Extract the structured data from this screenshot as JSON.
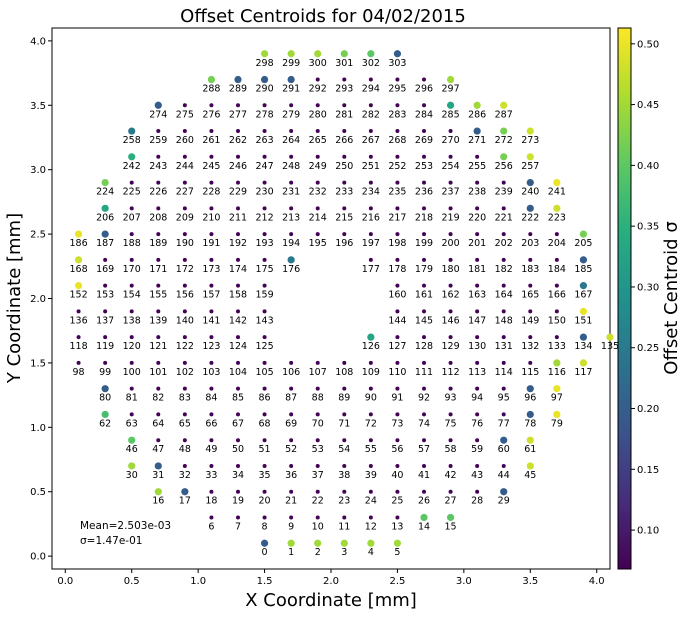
{
  "chart_data": {
    "type": "scatter",
    "title": "Offset Centroids for 04/02/2015",
    "xlabel": "X Coordinate [mm]",
    "ylabel": "Y Coordinate [mm]",
    "colorbar_label": "Offset Centroid σ",
    "xlim": [
      -0.1,
      4.1
    ],
    "ylim": [
      -0.1,
      4.1
    ],
    "xticks": [
      0.0,
      0.5,
      1.0,
      1.5,
      2.0,
      2.5,
      3.0,
      3.5,
      4.0
    ],
    "yticks": [
      0.0,
      0.5,
      1.0,
      1.5,
      2.0,
      2.5,
      3.0,
      3.5,
      4.0
    ],
    "colorbar_range": [
      0.068,
      0.513
    ],
    "colorbar_ticks": [
      0.1,
      0.15,
      0.2,
      0.25,
      0.3,
      0.35,
      0.4,
      0.45,
      0.5
    ],
    "colormap": "viridis",
    "annotations": {
      "mean": "Mean=2.503e-03",
      "sigma": "σ=1.47e-01"
    },
    "rows": [
      {
        "y": 0.1,
        "x_start": 1.5,
        "start_index": 0,
        "count": 6,
        "sigma": [
          0.2,
          0.45,
          0.45,
          0.45,
          0.45,
          0.45
        ]
      },
      {
        "y": 0.3,
        "x_start": 1.1,
        "start_index": 6,
        "count": 10,
        "overrides": {
          "14": 0.4,
          "15": 0.4
        }
      },
      {
        "y": 0.5,
        "x_start": 0.7,
        "start_index": 16,
        "count": 14,
        "overrides": {
          "16": 0.45,
          "17": 0.2,
          "29": 0.2
        }
      },
      {
        "y": 0.7,
        "x_start": 0.5,
        "start_index": 30,
        "count": 16,
        "overrides": {
          "30": 0.45,
          "31": 0.2,
          "45": 0.48
        }
      },
      {
        "y": 0.9,
        "x_start": 0.5,
        "start_index": 46,
        "count": 16,
        "overrides": {
          "46": 0.4,
          "60": 0.2,
          "61": 0.48
        }
      },
      {
        "y": 1.1,
        "x_start": 0.3,
        "start_index": 62,
        "count": 18,
        "overrides": {
          "62": 0.38,
          "78": 0.2,
          "79": 0.5
        }
      },
      {
        "y": 1.3,
        "x_start": 0.3,
        "start_index": 80,
        "count": 18,
        "overrides": {
          "80": 0.2,
          "96": 0.2,
          "97": 0.5
        }
      },
      {
        "y": 1.5,
        "x_start": 0.1,
        "start_index": 98,
        "count": 20,
        "overrides": {
          "116": 0.45,
          "117": 0.48
        }
      },
      {
        "y": 1.7,
        "x_start": 0.1,
        "start_index": 118,
        "count": 18,
        "gap_after_x": 1.5,
        "gap_resume_x": 2.3,
        "overrides": {
          "126": 0.33,
          "134": 0.2,
          "135": 0.48
        }
      },
      {
        "y": 1.9,
        "x_start": 0.1,
        "start_index": 136,
        "count": 16,
        "gap_after_x": 1.5,
        "gap_resume_x": 2.5,
        "overrides": {
          "151": 0.5
        }
      },
      {
        "y": 2.1,
        "x_start": 0.1,
        "start_index": 152,
        "count": 16,
        "gap_after_x": 1.5,
        "gap_resume_x": 2.5,
        "overrides": {
          "152": 0.5,
          "167": 0.25
        }
      },
      {
        "y": 2.3,
        "x_start": 0.1,
        "start_index": 168,
        "count": 18,
        "gap_after_x": 1.7,
        "gap_resume_x": 2.3,
        "overrides": {
          "168": 0.48,
          "176": 0.25,
          "185": 0.2
        }
      },
      {
        "y": 2.5,
        "x_start": 0.1,
        "start_index": 186,
        "count": 20,
        "overrides": {
          "186": 0.5,
          "187": 0.2,
          "205": 0.42
        }
      },
      {
        "y": 2.7,
        "x_start": 0.3,
        "start_index": 206,
        "count": 18,
        "overrides": {
          "206": 0.33,
          "222": 0.2,
          "223": 0.48
        }
      },
      {
        "y": 2.9,
        "x_start": 0.3,
        "start_index": 224,
        "count": 18,
        "overrides": {
          "224": 0.42,
          "240": 0.2,
          "241": 0.5
        }
      },
      {
        "y": 3.1,
        "x_start": 0.5,
        "start_index": 242,
        "count": 16,
        "overrides": {
          "242": 0.35,
          "256": 0.42,
          "257": 0.48
        }
      },
      {
        "y": 3.3,
        "x_start": 0.5,
        "start_index": 258,
        "count": 16,
        "overrides": {
          "258": 0.25,
          "271": 0.2,
          "272": 0.42,
          "273": 0.48
        }
      },
      {
        "y": 3.5,
        "x_start": 0.7,
        "start_index": 274,
        "count": 14,
        "overrides": {
          "274": 0.2,
          "285": 0.33,
          "286": 0.45,
          "287": 0.48
        }
      },
      {
        "y": 3.7,
        "x_start": 1.1,
        "start_index": 288,
        "count": 10,
        "overrides": {
          "288": 0.42,
          "289": 0.2,
          "290": 0.2,
          "291": 0.2,
          "297": 0.45
        }
      },
      {
        "y": 3.9,
        "x_start": 1.5,
        "start_index": 298,
        "count": 6,
        "sigma": [
          0.45,
          0.45,
          0.45,
          0.42,
          0.4,
          0.2
        ]
      }
    ],
    "default_sigma": 0.07,
    "grid": false,
    "legend": "colorbar-right"
  }
}
